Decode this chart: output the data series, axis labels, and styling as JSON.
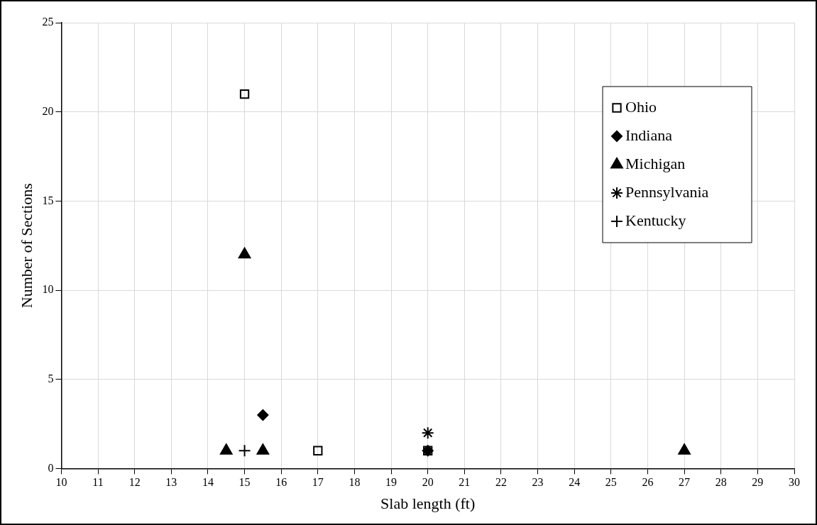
{
  "chart_data": {
    "type": "scatter",
    "xlabel": "Slab length (ft)",
    "ylabel": "Number of Sections",
    "xlim": [
      10,
      30
    ],
    "xticks": [
      10,
      11,
      12,
      13,
      14,
      15,
      16,
      17,
      18,
      19,
      20,
      21,
      22,
      23,
      24,
      25,
      26,
      27,
      28,
      29,
      30
    ],
    "ylim": [
      0,
      25
    ],
    "yticks": [
      0,
      5,
      10,
      15,
      20,
      25
    ],
    "grid": true,
    "legend": "top right",
    "series": [
      {
        "name": "Ohio",
        "color": "#000000",
        "marker": "square",
        "x": [
          15,
          17,
          20
        ],
        "values": [
          21,
          1,
          1
        ]
      },
      {
        "name": "Indiana",
        "color": "#000000",
        "marker": "diamond",
        "x": [
          15.5,
          20
        ],
        "values": [
          3,
          1
        ]
      },
      {
        "name": "Michigan",
        "color": "#000000",
        "marker": "triangle",
        "x": [
          15,
          14.5,
          15.5,
          27
        ],
        "values": [
          12,
          1,
          1,
          1
        ]
      },
      {
        "name": "Pennsylvania",
        "color": "#000000",
        "x": [
          20
        ],
        "values": [
          2
        ]
      },
      {
        "name": "Kentucky",
        "color": "#000000",
        "marker": "cross",
        "x": [
          15
        ],
        "values": [
          1
        ]
      }
    ]
  }
}
